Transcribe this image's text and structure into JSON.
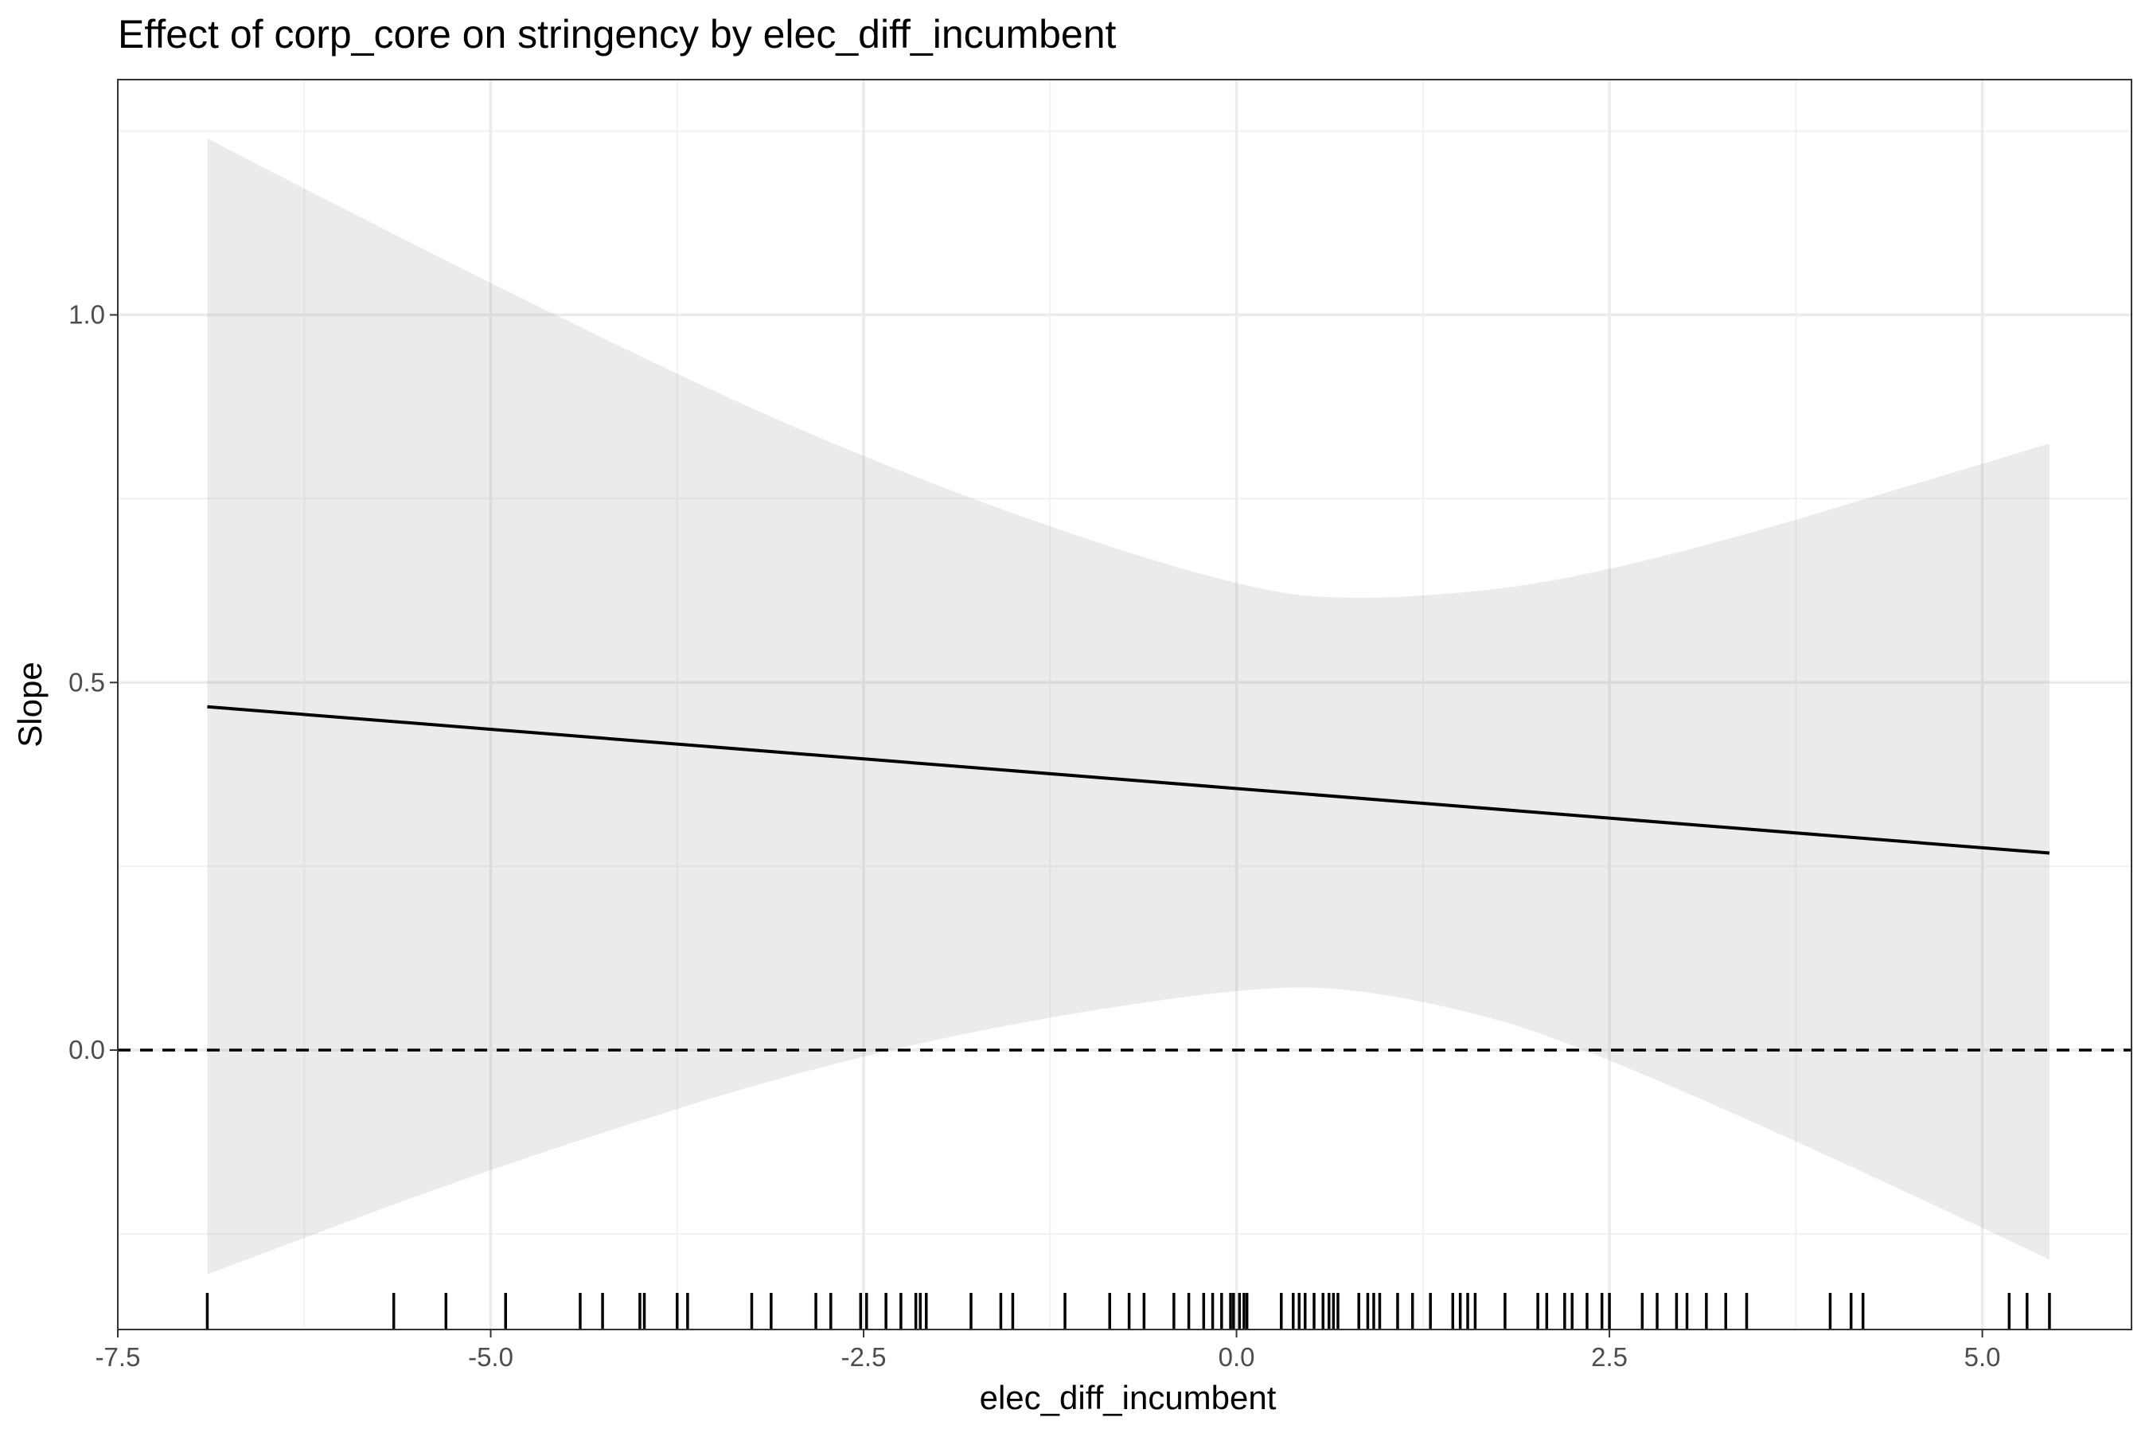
{
  "chart_data": {
    "type": "line",
    "title": "Effect of corp_core on stringency by elec_diff_incumbent",
    "xlabel": "elec_diff_incumbent",
    "ylabel": "Slope",
    "xlim": [
      -7.5,
      6.0
    ],
    "ylim": [
      -0.38,
      1.32
    ],
    "x_ticks": [
      -7.5,
      -5.0,
      -2.5,
      0.0,
      2.5,
      5.0
    ],
    "x_tick_labels": [
      "-7.5",
      "-5.0",
      "-2.5",
      "0.0",
      "2.5",
      "5.0"
    ],
    "y_ticks": [
      0.0,
      0.5,
      1.0
    ],
    "y_tick_labels": [
      "0.0",
      "0.5",
      "1.0"
    ],
    "grid": true,
    "reference_line": {
      "y": 0.0,
      "style": "dashed"
    },
    "series": [
      {
        "x": [
          -6.9,
          5.45
        ],
        "y": [
          0.467,
          0.268
        ]
      }
    ],
    "confidence_band": {
      "x": [
        -6.9,
        -5.0,
        -2.5,
        0.0,
        1.0,
        2.5,
        5.45
      ],
      "upper": [
        1.24,
        1.04,
        0.8,
        0.625,
        0.61,
        0.645,
        0.825
      ],
      "lower": [
        -0.305,
        -0.16,
        0.0,
        0.088,
        0.082,
        0.0,
        -0.285
      ]
    },
    "rug": [
      -6.9,
      -5.65,
      -5.3,
      -4.9,
      -4.4,
      -4.25,
      -4.0,
      -3.97,
      -3.75,
      -3.68,
      -3.25,
      -3.12,
      -2.82,
      -2.72,
      -2.52,
      -2.48,
      -2.35,
      -2.25,
      -2.15,
      -2.12,
      -2.08,
      -1.78,
      -1.58,
      -1.5,
      -1.15,
      -0.85,
      -0.72,
      -0.62,
      -0.42,
      -0.32,
      -0.22,
      -0.16,
      -0.1,
      -0.04,
      -0.02,
      0.02,
      0.05,
      0.07,
      0.3,
      0.38,
      0.42,
      0.46,
      0.52,
      0.58,
      0.62,
      0.65,
      0.68,
      0.82,
      0.88,
      0.92,
      0.96,
      1.08,
      1.18,
      1.3,
      1.45,
      1.5,
      1.55,
      1.6,
      1.8,
      2.02,
      2.08,
      2.2,
      2.25,
      2.35,
      2.45,
      2.5,
      2.72,
      2.82,
      2.95,
      3.02,
      3.15,
      3.28,
      3.42,
      3.98,
      4.12,
      4.2,
      5.18,
      5.3,
      5.45
    ]
  }
}
